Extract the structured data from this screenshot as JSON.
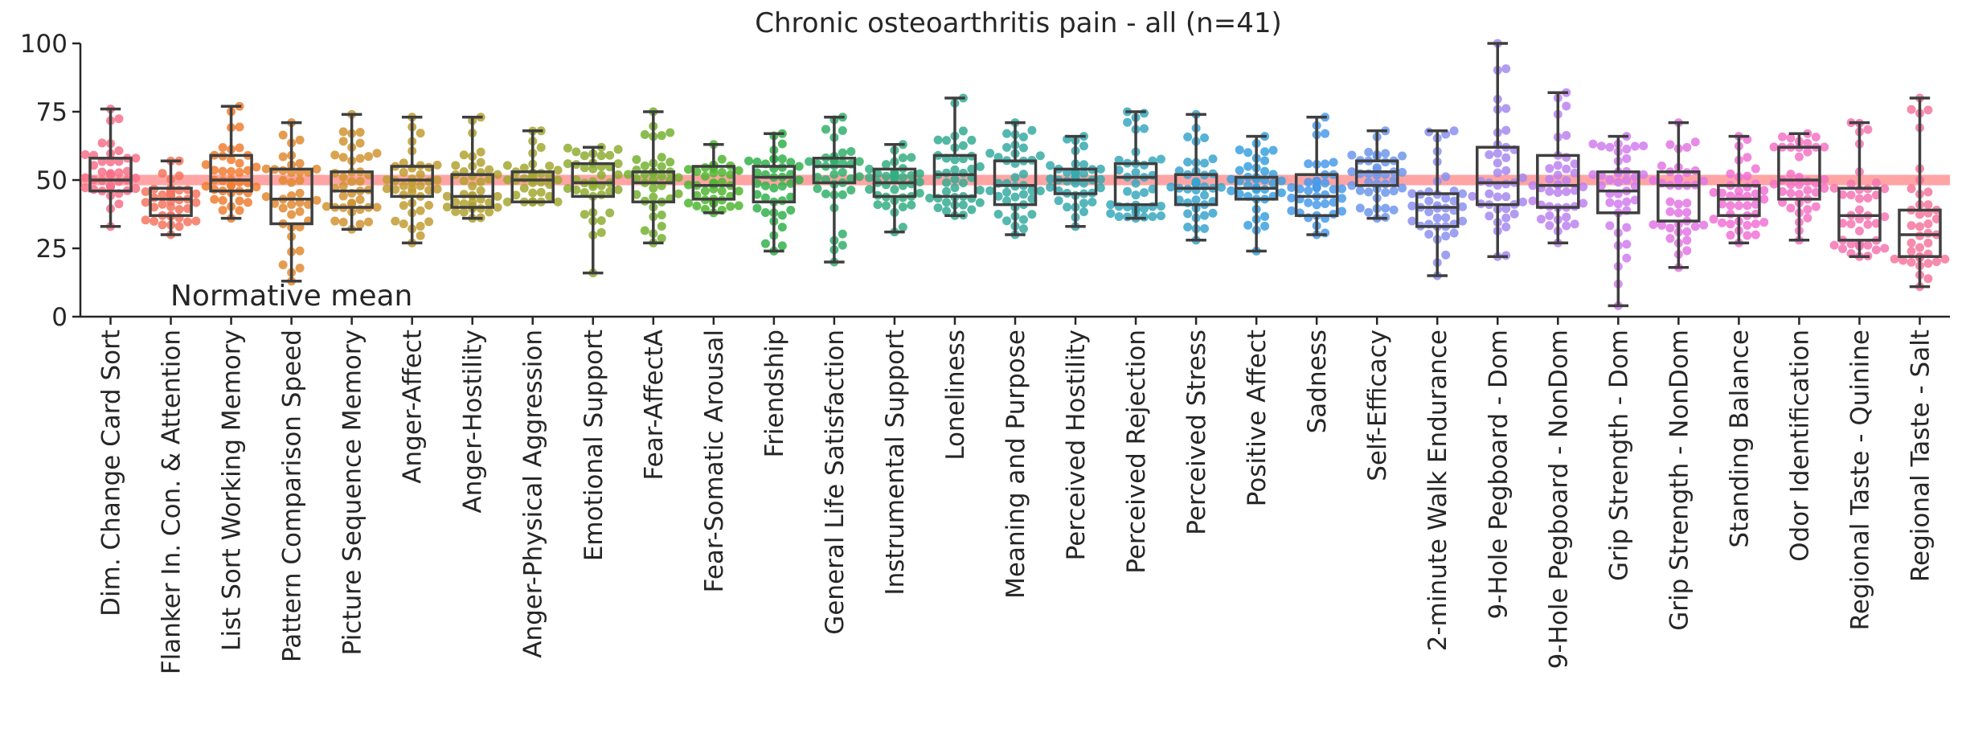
{
  "chart_data": {
    "type": "box_swarm",
    "title": "Chronic osteoarthritis pain - all (n=41)",
    "ylim": [
      0,
      100
    ],
    "yticks": [
      0,
      25,
      50,
      75,
      100
    ],
    "normative_mean": 50,
    "normative_label": "Normative mean",
    "normative_color": "#ff9a9a",
    "categories": [
      {
        "name": "Dim. Change Card Sort",
        "color": "#f77189",
        "min": 33,
        "q1": 46,
        "median": 50,
        "q3": 58,
        "max": 76
      },
      {
        "name": "Flanker In. Con. & Attention",
        "color": "#f6745f",
        "min": 30,
        "q1": 37,
        "median": 43,
        "q3": 47,
        "max": 57
      },
      {
        "name": "List Sort Working Memory",
        "color": "#f07e31",
        "min": 36,
        "q1": 46,
        "median": 50,
        "q3": 59,
        "max": 77
      },
      {
        "name": "Pattern Comparison Speed",
        "color": "#e08a31",
        "min": 13,
        "q1": 34,
        "median": 43,
        "q3": 54,
        "max": 71
      },
      {
        "name": "Picture Sequence Memory",
        "color": "#d19431",
        "min": 32,
        "q1": 40,
        "median": 46,
        "q3": 53,
        "max": 74
      },
      {
        "name": "Anger-Affect",
        "color": "#c29c31",
        "min": 27,
        "q1": 44,
        "median": 50,
        "q3": 55,
        "max": 73
      },
      {
        "name": "Anger-Hostility",
        "color": "#b3a231",
        "min": 36,
        "q1": 40,
        "median": 44,
        "q3": 52,
        "max": 73
      },
      {
        "name": "Anger-Physical Aggression",
        "color": "#a3a831",
        "min": 42,
        "q1": 42,
        "median": 50,
        "q3": 53,
        "max": 68
      },
      {
        "name": "Emotional Support",
        "color": "#8fad31",
        "min": 16,
        "q1": 44,
        "median": 49,
        "q3": 56,
        "max": 62
      },
      {
        "name": "Fear-AffectA",
        "color": "#75b131",
        "min": 27,
        "q1": 42,
        "median": 49,
        "q3": 53,
        "max": 75
      },
      {
        "name": "Fear-Somatic Arousal",
        "color": "#50b631",
        "min": 38,
        "q1": 43,
        "median": 48,
        "q3": 55,
        "max": 63
      },
      {
        "name": "Friendship",
        "color": "#32b24b",
        "min": 24,
        "q1": 42,
        "median": 51,
        "q3": 55,
        "max": 67
      },
      {
        "name": "General Life Satisfaction",
        "color": "#33b06c",
        "min": 20,
        "q1": 49,
        "median": 55,
        "q3": 58,
        "max": 73
      },
      {
        "name": "Instrumental Support",
        "color": "#34ae82",
        "min": 31,
        "q1": 44,
        "median": 49,
        "q3": 54,
        "max": 63
      },
      {
        "name": "Loneliness",
        "color": "#35ac93",
        "min": 37,
        "q1": 44,
        "median": 52,
        "q3": 59,
        "max": 80
      },
      {
        "name": "Meaning and Purpose",
        "color": "#36aba2",
        "min": 30,
        "q1": 41,
        "median": 48,
        "q3": 57,
        "max": 71
      },
      {
        "name": "Perceived Hostility",
        "color": "#37aaaf",
        "min": 33,
        "q1": 45,
        "median": 50,
        "q3": 54,
        "max": 66
      },
      {
        "name": "Perceived Rejection",
        "color": "#38a8bd",
        "min": 36,
        "q1": 41,
        "median": 51,
        "q3": 56,
        "max": 75
      },
      {
        "name": "Perceived Stress",
        "color": "#39a5cc",
        "min": 28,
        "q1": 41,
        "median": 47,
        "q3": 52,
        "max": 74
      },
      {
        "name": "Positive Affect",
        "color": "#3aa1de",
        "min": 24,
        "q1": 43,
        "median": 47,
        "q3": 51,
        "max": 66
      },
      {
        "name": "Sadness",
        "color": "#4a9bea",
        "min": 30,
        "q1": 37,
        "median": 44,
        "q3": 52,
        "max": 73
      },
      {
        "name": "Self-Efficacy",
        "color": "#6d96ec",
        "min": 36,
        "q1": 48,
        "median": 53,
        "q3": 57,
        "max": 68
      },
      {
        "name": "2-minute Walk Endurance",
        "color": "#8b90ee",
        "min": 15,
        "q1": 33,
        "median": 40,
        "q3": 45,
        "max": 68
      },
      {
        "name": "9-Hole Pegboard - Dom",
        "color": "#a48aef",
        "min": 22,
        "q1": 41,
        "median": 49,
        "q3": 62,
        "max": 100
      },
      {
        "name": "9-Hole Pegboard - NonDom",
        "color": "#bc82f0",
        "min": 27,
        "q1": 40,
        "median": 48,
        "q3": 59,
        "max": 82
      },
      {
        "name": "Grip Strength - Dom",
        "color": "#d17cee",
        "min": 4,
        "q1": 38,
        "median": 46,
        "q3": 53,
        "max": 66
      },
      {
        "name": "Grip Strength - NonDom",
        "color": "#e377e4",
        "min": 18,
        "q1": 35,
        "median": 48,
        "q3": 53,
        "max": 71
      },
      {
        "name": "Standing Balance",
        "color": "#f072d6",
        "min": 27,
        "q1": 37,
        "median": 43,
        "q3": 48,
        "max": 66
      },
      {
        "name": "Odor Identification",
        "color": "#f473c4",
        "min": 28,
        "q1": 43,
        "median": 50,
        "q3": 62,
        "max": 67
      },
      {
        "name": "Regional Taste - Quinine",
        "color": "#f575b1",
        "min": 22,
        "q1": 28,
        "median": 37,
        "q3": 47,
        "max": 71
      },
      {
        "name": "Regional Taste - Salt",
        "color": "#f6779d",
        "min": 11,
        "q1": 22,
        "median": 30,
        "q3": 39,
        "max": 80
      }
    ]
  }
}
